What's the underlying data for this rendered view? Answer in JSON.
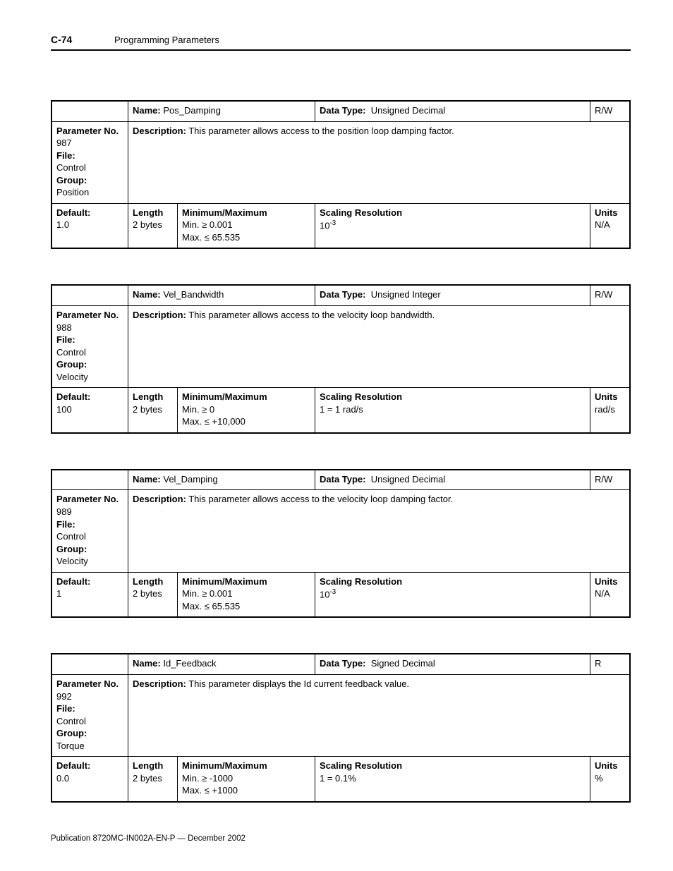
{
  "header": {
    "page_num": "C-74",
    "title": "Programming Parameters"
  },
  "footer": "Publication 8720MC-IN002A-EN-P — December 2002",
  "labels": {
    "name": "Name:",
    "data_type": "Data Type:",
    "param_no": "Parameter No.",
    "file": "File:",
    "group": "Group:",
    "description": "Description:",
    "default": "Default:",
    "length": "Length",
    "minmax": "Minimum/Maximum",
    "scaling": "Scaling Resolution",
    "units": "Units",
    "min": "Min.",
    "max": "Max."
  },
  "params": [
    {
      "name": "Pos_Damping",
      "data_type": "Unsigned Decimal",
      "rw": "R/W",
      "param_no": "987",
      "file": "Control",
      "group": "Position",
      "description": "This parameter allows access to the position loop damping factor.",
      "default": "1.0",
      "length": "2 bytes",
      "min": "≥ 0.001",
      "max": "≤ 65.535",
      "scaling_html": "10<sup>-3</sup>",
      "units": "N/A"
    },
    {
      "name": "Vel_Bandwidth",
      "data_type": "Unsigned Integer",
      "rw": "R/W",
      "param_no": "988",
      "file": "Control",
      "group": "Velocity",
      "description": "This parameter allows access to the velocity loop bandwidth.",
      "default": "100",
      "length": "2 bytes",
      "min": "≥ 0",
      "max": "≤ +10,000",
      "scaling_html": "1 = 1 rad/s",
      "units": "rad/s"
    },
    {
      "name": "Vel_Damping",
      "data_type": "Unsigned Decimal",
      "rw": "R/W",
      "param_no": "989",
      "file": "Control",
      "group": "Velocity",
      "description": "This parameter allows access to the velocity loop damping factor.",
      "default": "1",
      "length": "2 bytes",
      "min": "≥ 0.001",
      "max": "≤ 65.535",
      "scaling_html": "10<sup>-3</sup>",
      "units": "N/A"
    },
    {
      "name": "Id_Feedback",
      "data_type": "Signed Decimal",
      "rw": "R",
      "param_no": "992",
      "file": "Control",
      "group": "Torque",
      "description": "This parameter displays the Id current feedback value.",
      "default": "0.0",
      "length": "2 bytes",
      "min": "≥ -1000",
      "max": "≤ +1000",
      "scaling_html": "1 = 0.1%",
      "units": "%"
    }
  ]
}
